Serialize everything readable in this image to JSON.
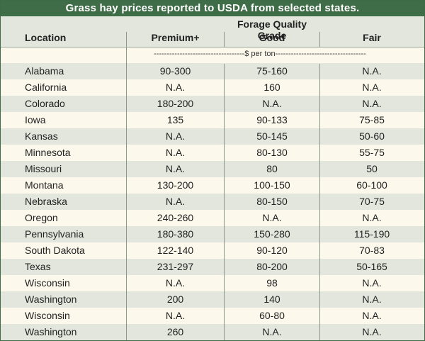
{
  "title": "Grass hay prices reported to USDA from selected states.",
  "headers": {
    "location": "Location",
    "group": "Forage Quality Grade",
    "premium": "Premium+",
    "good": "Good",
    "fair": "Fair"
  },
  "units": "-----------------------------------$ per ton-----------------------------------",
  "colors": {
    "title_bar": "#3f6d48",
    "shaded_row": "#e3e6dc",
    "light_row": "#fdf8ec"
  },
  "rows": [
    {
      "location": "Alabama",
      "premium": "90-300",
      "good": "75-160",
      "fair": "N.A."
    },
    {
      "location": "California",
      "premium": "N.A.",
      "good": "160",
      "fair": "N.A."
    },
    {
      "location": "Colorado",
      "premium": "180-200",
      "good": "N.A.",
      "fair": "N.A."
    },
    {
      "location": "Iowa",
      "premium": "135",
      "good": "90-133",
      "fair": "75-85"
    },
    {
      "location": "Kansas",
      "premium": "N.A.",
      "good": "50-145",
      "fair": "50-60"
    },
    {
      "location": "Minnesota",
      "premium": "N.A.",
      "good": "80-130",
      "fair": "55-75"
    },
    {
      "location": "Missouri",
      "premium": "N.A.",
      "good": "80",
      "fair": "50"
    },
    {
      "location": "Montana",
      "premium": "130-200",
      "good": "100-150",
      "fair": "60-100"
    },
    {
      "location": "Nebraska",
      "premium": "N.A.",
      "good": "80-150",
      "fair": "70-75"
    },
    {
      "location": "Oregon",
      "premium": "240-260",
      "good": "N.A.",
      "fair": "N.A."
    },
    {
      "location": "Pennsylvania",
      "premium": "180-380",
      "good": "150-280",
      "fair": "115-190"
    },
    {
      "location": "South Dakota",
      "premium": "122-140",
      "good": "90-120",
      "fair": "70-83"
    },
    {
      "location": "Texas",
      "premium": "231-297",
      "good": "80-200",
      "fair": "50-165"
    },
    {
      "location": "Wisconsin",
      "premium": "N.A.",
      "good": "98",
      "fair": "N.A."
    },
    {
      "location": "Washington",
      "premium": "200",
      "good": "140",
      "fair": "N.A."
    },
    {
      "location": "Wisconsin",
      "premium": "N.A.",
      "good": "60-80",
      "fair": "N.A."
    },
    {
      "location": "Washington",
      "premium": "260",
      "good": "N.A.",
      "fair": "N.A."
    }
  ]
}
